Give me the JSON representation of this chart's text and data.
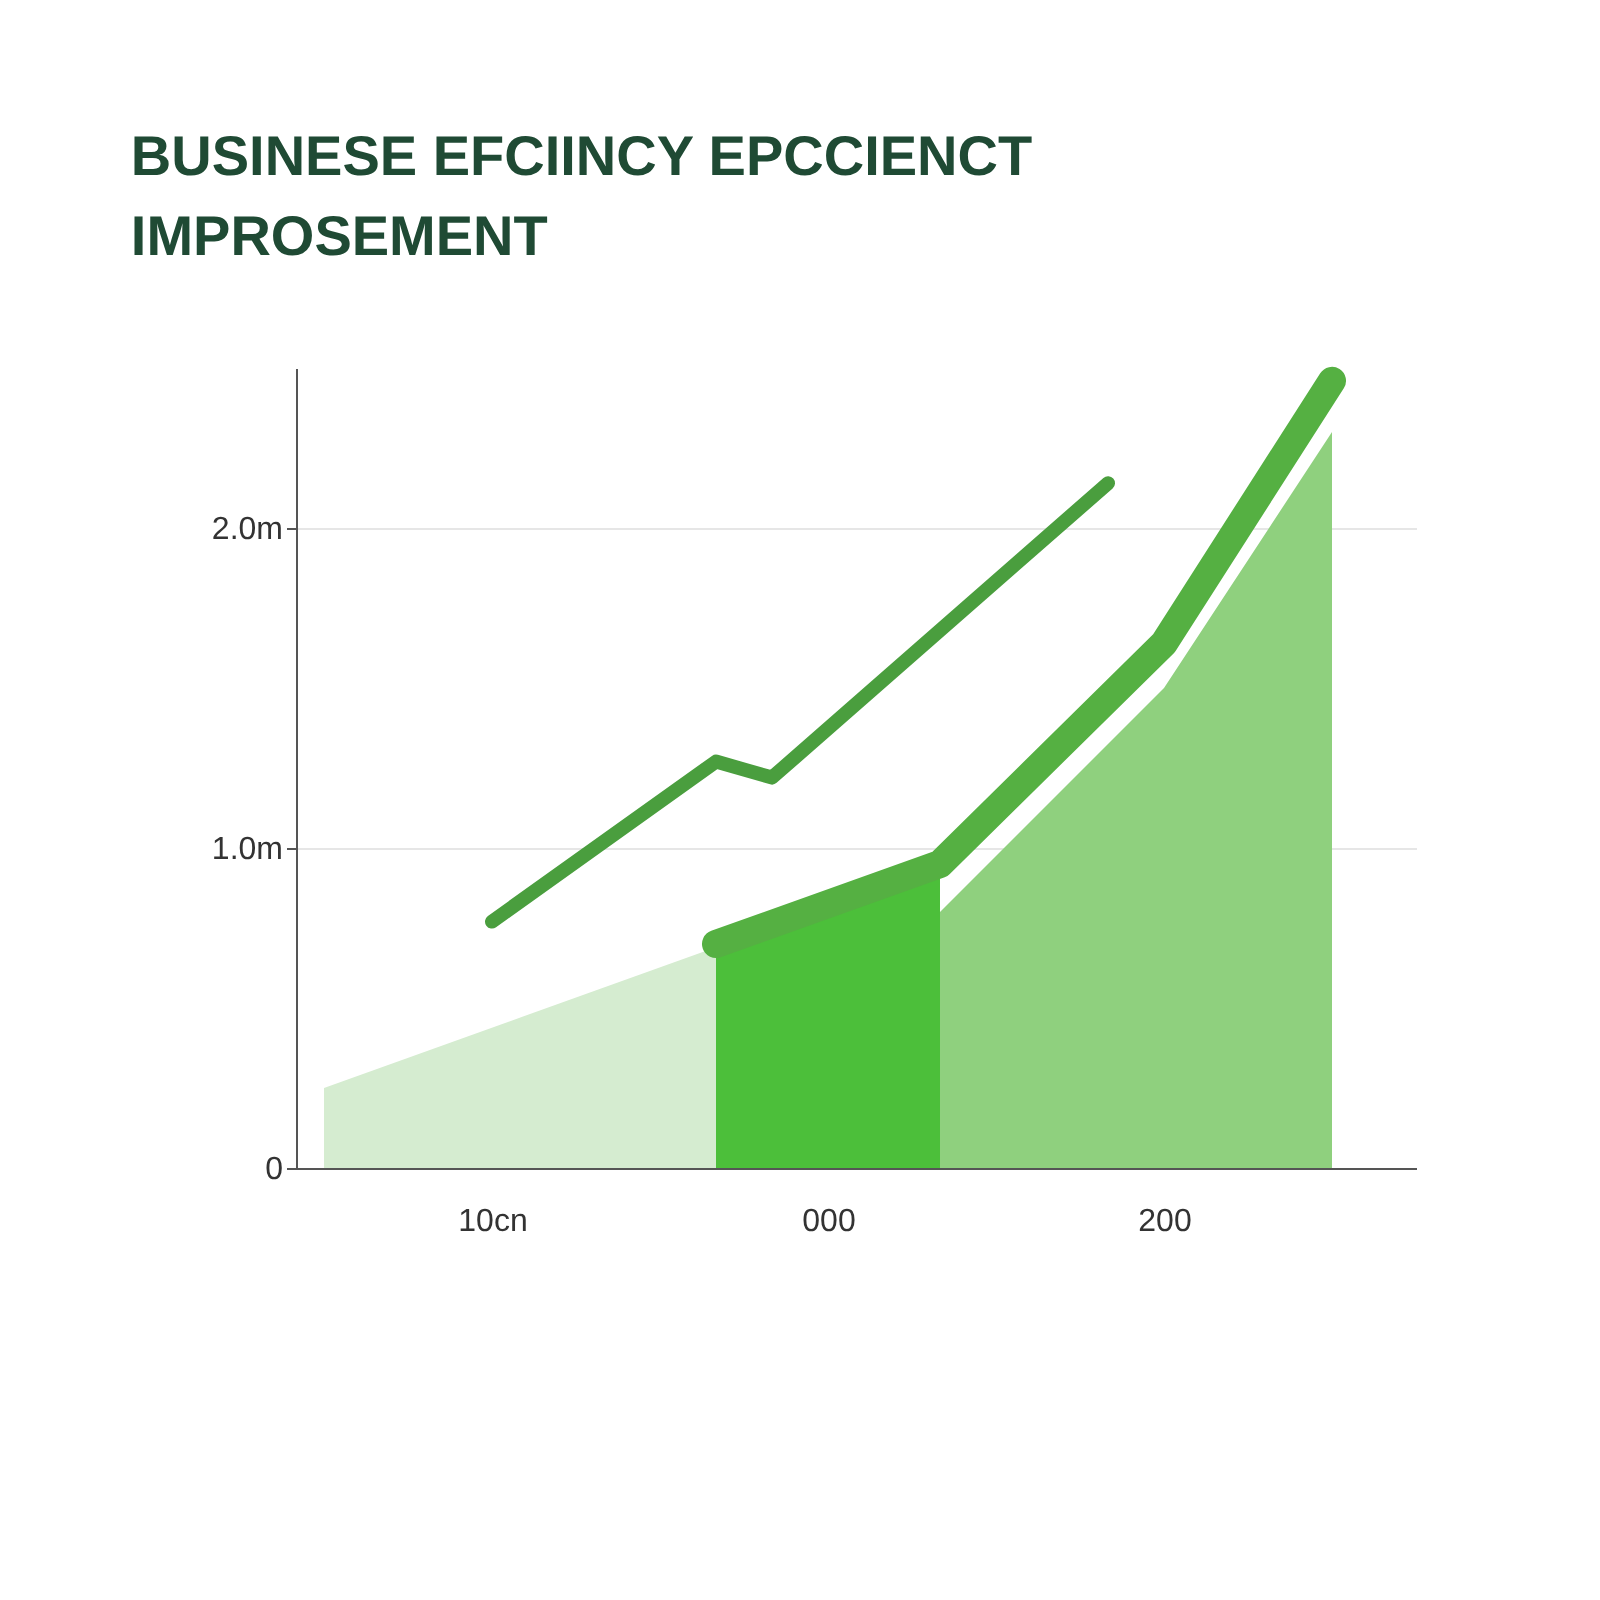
{
  "chart_data": {
    "type": "area",
    "title": "BUSINESE EFCIINCY EPCCIENCT\nIMPROSEMENT",
    "categories": [
      null,
      null,
      null,
      "10cn",
      null,
      null,
      null,
      null,
      null,
      "000",
      null,
      null,
      null,
      null,
      null,
      "200",
      null,
      null,
      null,
      null
    ],
    "ylim": [
      0,
      2500000
    ],
    "yticks": [
      {
        "value": 0,
        "label": "0"
      },
      {
        "value": 1000000,
        "label": "1.0m"
      },
      {
        "value": 2000000,
        "label": "2.0m"
      }
    ],
    "grid": "y",
    "line_style": "solid",
    "series": [
      {
        "color": "#d5ecd0",
        "values": [
          250000,
          null,
          null,
          null,
          null,
          null,
          null,
          690000,
          null,
          null,
          null,
          null,
          null,
          null,
          null,
          null,
          null,
          null,
          null,
          null
        ]
      },
      {
        "color": "#4cbf3a",
        "values": [
          null,
          null,
          null,
          null,
          null,
          null,
          null,
          700000,
          null,
          820000,
          null,
          950000,
          null,
          null,
          null,
          null,
          null,
          null,
          null,
          null
        ]
      },
      {
        "color": "#8fd07e",
        "values": [
          null,
          null,
          null,
          null,
          null,
          null,
          null,
          null,
          null,
          null,
          null,
          800000,
          null,
          null,
          null,
          1500000,
          null,
          null,
          2300000,
          null
        ]
      },
      {
        "type": "line",
        "color": "#4a9e3e",
        "values": [
          null,
          null,
          null,
          770000,
          null,
          null,
          null,
          1270000,
          1220000,
          null,
          null,
          null,
          null,
          null,
          2140000,
          null,
          null,
          null,
          null,
          null
        ]
      },
      {
        "type": "line",
        "color": "#55b042",
        "values": [
          null,
          null,
          null,
          null,
          null,
          null,
          null,
          700000,
          null,
          null,
          null,
          950000,
          null,
          null,
          null,
          1640000,
          null,
          null,
          2460000,
          null
        ]
      }
    ]
  }
}
